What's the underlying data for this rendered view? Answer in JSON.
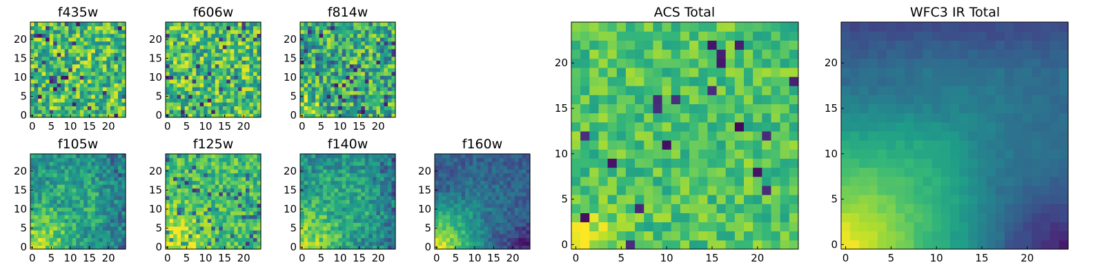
{
  "chart_data": [
    {
      "type": "heatmap",
      "title": "f435w",
      "xticks": [
        "0",
        "5",
        "10",
        "15",
        "20"
      ],
      "yticks": [
        "0",
        "5",
        "10",
        "15",
        "20"
      ],
      "xlim": [
        0,
        24
      ],
      "ylim": [
        0,
        24
      ],
      "colormap": "viridis",
      "pattern": "noise",
      "seed": 11
    },
    {
      "type": "heatmap",
      "title": "f606w",
      "xticks": [
        "0",
        "5",
        "10",
        "15",
        "20"
      ],
      "yticks": [
        "0",
        "5",
        "10",
        "15",
        "20"
      ],
      "xlim": [
        0,
        24
      ],
      "ylim": [
        0,
        24
      ],
      "colormap": "viridis",
      "pattern": "noise",
      "seed": 23
    },
    {
      "type": "heatmap",
      "title": "f814w",
      "xticks": [
        "0",
        "5",
        "10",
        "15",
        "20"
      ],
      "yticks": [
        "0",
        "5",
        "10",
        "15",
        "20"
      ],
      "xlim": [
        0,
        24
      ],
      "ylim": [
        0,
        24
      ],
      "colormap": "viridis",
      "pattern": "noise-corner",
      "seed": 37
    },
    {
      "type": "heatmap",
      "title": "f105w",
      "xticks": [
        "0",
        "5",
        "10",
        "15",
        "20"
      ],
      "yticks": [
        "0",
        "5",
        "10",
        "15",
        "20"
      ],
      "xlim": [
        0,
        24
      ],
      "ylim": [
        0,
        24
      ],
      "colormap": "viridis",
      "pattern": "ir-mid",
      "seed": 41
    },
    {
      "type": "heatmap",
      "title": "f125w",
      "xticks": [
        "0",
        "5",
        "10",
        "15",
        "20"
      ],
      "yticks": [
        "0",
        "5",
        "10",
        "15",
        "20"
      ],
      "xlim": [
        0,
        24
      ],
      "ylim": [
        0,
        24
      ],
      "colormap": "viridis",
      "pattern": "ir-bright",
      "seed": 53
    },
    {
      "type": "heatmap",
      "title": "f140w",
      "xticks": [
        "0",
        "5",
        "10",
        "15",
        "20"
      ],
      "yticks": [
        "0",
        "5",
        "10",
        "15",
        "20"
      ],
      "xlim": [
        0,
        24
      ],
      "ylim": [
        0,
        24
      ],
      "colormap": "viridis",
      "pattern": "ir-mid",
      "seed": 67
    },
    {
      "type": "heatmap",
      "title": "f160w",
      "xticks": [
        "0",
        "5",
        "10",
        "15",
        "20"
      ],
      "yticks": [
        "0",
        "5",
        "10",
        "15",
        "20"
      ],
      "xlim": [
        0,
        24
      ],
      "ylim": [
        0,
        24
      ],
      "colormap": "viridis",
      "pattern": "ir-dark",
      "seed": 79
    },
    {
      "type": "heatmap",
      "title": "ACS Total",
      "xticks": [
        "0",
        "5",
        "10",
        "15",
        "20"
      ],
      "yticks": [
        "0",
        "5",
        "10",
        "15",
        "20"
      ],
      "xlim": [
        0,
        24
      ],
      "ylim": [
        0,
        24
      ],
      "colormap": "viridis",
      "pattern": "acs-total",
      "seed": 97
    },
    {
      "type": "heatmap",
      "title": "WFC3 IR Total",
      "xticks": [
        "0",
        "5",
        "10",
        "15",
        "20"
      ],
      "yticks": [
        "0",
        "5",
        "10",
        "15",
        "20"
      ],
      "xlim": [
        0,
        24
      ],
      "ylim": [
        0,
        24
      ],
      "colormap": "viridis",
      "pattern": "ir-total",
      "seed": 101
    }
  ]
}
